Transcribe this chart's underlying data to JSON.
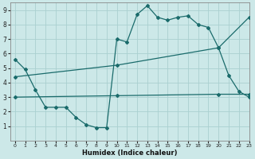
{
  "xlabel": "Humidex (Indice chaleur)",
  "bg_color": "#cce8e8",
  "grid_color": "#aad0d0",
  "line_color": "#1a6b6b",
  "line1_x": [
    0,
    1,
    2,
    3,
    4,
    5,
    6,
    7,
    8,
    9,
    10,
    11,
    12,
    13,
    14,
    15,
    16,
    17,
    18,
    19,
    20,
    21,
    22,
    23
  ],
  "line1_y": [
    5.6,
    4.9,
    3.5,
    2.3,
    2.3,
    2.3,
    1.6,
    1.1,
    0.9,
    0.9,
    7.0,
    6.8,
    8.7,
    9.3,
    8.5,
    8.3,
    8.5,
    8.6,
    8.0,
    7.8,
    6.4,
    4.5,
    3.4,
    3.0
  ],
  "line2_x": [
    0,
    10,
    20,
    23
  ],
  "line2_y": [
    4.4,
    5.2,
    6.4,
    8.5
  ],
  "line3_x": [
    0,
    10,
    20,
    23
  ],
  "line3_y": [
    3.0,
    3.1,
    3.2,
    3.2
  ],
  "xlim": [
    -0.5,
    23
  ],
  "ylim": [
    0,
    9.5
  ],
  "xticks": [
    0,
    1,
    2,
    3,
    4,
    5,
    6,
    7,
    8,
    9,
    10,
    11,
    12,
    13,
    14,
    15,
    16,
    17,
    18,
    19,
    20,
    21,
    22,
    23
  ],
  "yticks": [
    1,
    2,
    3,
    4,
    5,
    6,
    7,
    8,
    9
  ]
}
